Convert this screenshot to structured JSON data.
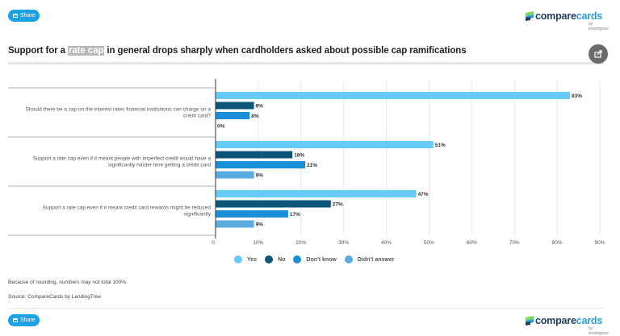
{
  "share": {
    "label": "Share"
  },
  "logo": {
    "brand_part1": "compare",
    "brand_part2": "cards",
    "byline": "by lendingtree"
  },
  "title": {
    "prefix": "Support for a ",
    "highlight": "rate cap",
    "suffix": " in general drops sharply when cardholders asked about possible cap ramifications"
  },
  "export_icon": "share-export-icon",
  "notes": {
    "rounding": "Because of rounding, numbers may not total 100%.",
    "source": "Source: CompareCards by LendingTree"
  },
  "chart_data": {
    "type": "bar",
    "orientation": "horizontal",
    "title": "Support for a rate cap in general drops sharply when cardholders asked about possible cap ramifications",
    "xlabel": "",
    "ylabel": "",
    "xlim": [
      0,
      90
    ],
    "x_ticks": [
      "0",
      "10%",
      "20%",
      "30%",
      "40%",
      "50%",
      "60%",
      "70%",
      "80%",
      "90%"
    ],
    "grid": true,
    "legend_position": "bottom",
    "categories": [
      "Should there be a cap on the interest rates financial institutions can charge on a credit card?",
      "Support a rate cap even if it meant people with imperfect credit would have a significantly harder time getting a credit card",
      "Support a rate cap even if it meant credit card rewards might be reduced significantly"
    ],
    "categories_lines": [
      [
        "Should there be a cap on the interest rates financial institutions can charge on a",
        "credit card?"
      ],
      [
        "Support a rate cap even if it meant people with imperfect credit would have a",
        "significantly harder time getting a credit card"
      ],
      [
        "Support a rate cap even if it meant credit card rewards might be reduced",
        "significantly"
      ]
    ],
    "series": [
      {
        "name": "Yes",
        "color": "#66ccf7",
        "values": [
          83,
          51,
          47
        ]
      },
      {
        "name": "No",
        "color": "#0b5579",
        "values": [
          9,
          18,
          27
        ]
      },
      {
        "name": "Don't know",
        "color": "#1a8fd8",
        "values": [
          8,
          21,
          17
        ]
      },
      {
        "name": "Didn't answer",
        "color": "#5aacdf",
        "values": [
          0,
          9,
          9
        ]
      }
    ],
    "data_labels": [
      [
        "83%",
        "51%",
        "47%"
      ],
      [
        "9%",
        "18%",
        "27%"
      ],
      [
        "8%",
        "21%",
        "17%"
      ],
      [
        "0%",
        "9%",
        "9%"
      ]
    ]
  }
}
